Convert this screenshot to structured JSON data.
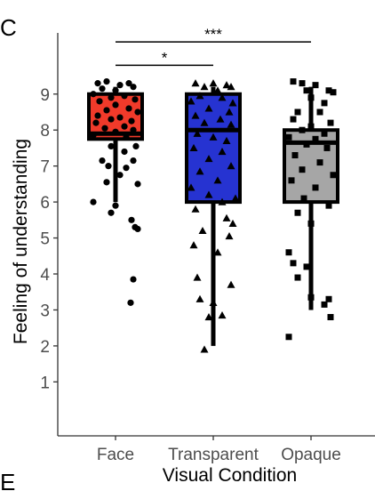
{
  "panel_label": "C",
  "bottom_panel_label": "E",
  "chart_data": {
    "type": "box",
    "title": "",
    "xlabel": "Visual Condition",
    "ylabel": "Feeling of understanding",
    "ylim": [
      -0.5,
      10.7
    ],
    "yticks": [
      1,
      2,
      3,
      4,
      5,
      6,
      7,
      8,
      9
    ],
    "grid": false,
    "legend": "none",
    "categories": [
      "Face",
      "Transparent",
      "Opaque"
    ],
    "boxes": [
      {
        "category": "Face",
        "q1": 7.75,
        "median": 7.9,
        "q3": 9.0,
        "whisker_low": 6.0,
        "whisker_high": 9.2,
        "color": "#f03a2a",
        "marker": "circle"
      },
      {
        "category": "Transparent",
        "q1": 6.0,
        "median": 8.0,
        "q3": 9.0,
        "whisker_low": 2.0,
        "whisker_high": 9.2,
        "color": "#2633d1",
        "marker": "triangle"
      },
      {
        "category": "Opaque",
        "q1": 6.0,
        "median": 7.65,
        "q3": 8.0,
        "whisker_low": 3.0,
        "whisker_high": 9.2,
        "color": "#a6a6a6",
        "marker": "square"
      }
    ],
    "points": {
      "Face": [
        [
          -0.2,
          9.3
        ],
        [
          -0.1,
          9.35
        ],
        [
          0.05,
          9.25
        ],
        [
          0.15,
          9.3
        ],
        [
          -0.15,
          9.15
        ],
        [
          0.2,
          9.2
        ],
        [
          0.0,
          9.1
        ],
        [
          -0.25,
          9.0
        ],
        [
          0.1,
          8.95
        ],
        [
          -0.05,
          8.9
        ],
        [
          0.22,
          8.85
        ],
        [
          -0.18,
          8.8
        ],
        [
          0.0,
          8.7
        ],
        [
          0.15,
          8.6
        ],
        [
          -0.1,
          8.55
        ],
        [
          0.25,
          8.5
        ],
        [
          -0.2,
          8.4
        ],
        [
          0.05,
          8.35
        ],
        [
          -0.05,
          8.3
        ],
        [
          0.18,
          8.25
        ],
        [
          -0.22,
          8.2
        ],
        [
          0.1,
          8.1
        ],
        [
          -0.12,
          8.05
        ],
        [
          0.2,
          8.0
        ],
        [
          0.0,
          7.95
        ],
        [
          -0.25,
          7.85
        ],
        [
          0.12,
          7.8
        ],
        [
          0.23,
          7.55
        ],
        [
          -0.05,
          7.55
        ],
        [
          0.1,
          7.4
        ],
        [
          -0.15,
          7.15
        ],
        [
          0.2,
          7.15
        ],
        [
          -0.08,
          7.0
        ],
        [
          0.12,
          6.95
        ],
        [
          0.05,
          6.75
        ],
        [
          -0.1,
          6.55
        ],
        [
          0.25,
          6.5
        ],
        [
          -0.25,
          6.0
        ],
        [
          0.0,
          5.9
        ],
        [
          -0.05,
          5.7
        ],
        [
          0.18,
          5.5
        ],
        [
          0.22,
          5.3
        ],
        [
          0.25,
          5.25
        ],
        [
          0.2,
          3.85
        ],
        [
          0.17,
          3.2
        ]
      ],
      "Transparent": [
        [
          -0.2,
          9.3
        ],
        [
          0.0,
          9.3
        ],
        [
          0.15,
          9.25
        ],
        [
          -0.1,
          9.2
        ],
        [
          0.2,
          9.2
        ],
        [
          0.05,
          9.1
        ],
        [
          -0.15,
          8.95
        ],
        [
          0.1,
          8.9
        ],
        [
          -0.25,
          8.8
        ],
        [
          0.22,
          8.75
        ],
        [
          -0.05,
          8.6
        ],
        [
          0.18,
          8.5
        ],
        [
          -0.2,
          8.4
        ],
        [
          0.08,
          8.3
        ],
        [
          -0.1,
          8.2
        ],
        [
          0.2,
          8.15
        ],
        [
          -0.18,
          7.9
        ],
        [
          0.0,
          7.8
        ],
        [
          0.15,
          7.7
        ],
        [
          -0.22,
          7.5
        ],
        [
          0.1,
          7.4
        ],
        [
          -0.05,
          7.2
        ],
        [
          0.2,
          7.0
        ],
        [
          -0.15,
          6.85
        ],
        [
          0.05,
          6.6
        ],
        [
          -0.25,
          6.4
        ],
        [
          0.25,
          6.1
        ],
        [
          -0.05,
          6.2
        ],
        [
          0.1,
          6.0
        ],
        [
          -0.2,
          5.8
        ],
        [
          0.15,
          5.55
        ],
        [
          0.22,
          5.4
        ],
        [
          -0.12,
          5.2
        ],
        [
          0.18,
          5.05
        ],
        [
          -0.22,
          4.8
        ],
        [
          0.05,
          4.6
        ],
        [
          -0.18,
          3.9
        ],
        [
          0.2,
          3.7
        ],
        [
          -0.15,
          3.3
        ],
        [
          0.0,
          3.2
        ],
        [
          -0.05,
          2.8
        ],
        [
          0.1,
          2.85
        ],
        [
          -0.1,
          1.9
        ]
      ],
      "Opaque": [
        [
          -0.2,
          9.35
        ],
        [
          -0.1,
          9.3
        ],
        [
          0.05,
          9.25
        ],
        [
          0.2,
          9.1
        ],
        [
          0.25,
          9.05
        ],
        [
          -0.05,
          9.1
        ],
        [
          0.0,
          8.9
        ],
        [
          0.15,
          8.75
        ],
        [
          -0.15,
          8.5
        ],
        [
          0.1,
          8.5
        ],
        [
          -0.2,
          8.3
        ],
        [
          0.22,
          8.2
        ],
        [
          0.0,
          8.1
        ],
        [
          -0.1,
          8.0
        ],
        [
          0.15,
          7.9
        ],
        [
          -0.25,
          7.8
        ],
        [
          0.05,
          7.75
        ],
        [
          -0.05,
          7.6
        ],
        [
          0.18,
          7.5
        ],
        [
          -0.18,
          7.3
        ],
        [
          0.1,
          7.1
        ],
        [
          -0.1,
          6.9
        ],
        [
          0.25,
          6.75
        ],
        [
          -0.22,
          6.6
        ],
        [
          0.05,
          6.4
        ],
        [
          -0.08,
          6.1
        ],
        [
          0.2,
          5.9
        ],
        [
          -0.15,
          5.7
        ],
        [
          0.0,
          5.4
        ],
        [
          -0.25,
          4.6
        ],
        [
          -0.2,
          4.3
        ],
        [
          -0.05,
          4.2
        ],
        [
          -0.15,
          3.9
        ],
        [
          0.0,
          3.35
        ],
        [
          0.2,
          3.3
        ],
        [
          0.15,
          3.15
        ],
        [
          0.22,
          2.8
        ],
        [
          -0.25,
          2.25
        ]
      ]
    },
    "significance": [
      {
        "from": "Face",
        "to": "Transparent",
        "label": "*",
        "y": 9.8
      },
      {
        "from": "Face",
        "to": "Opaque",
        "label": "***",
        "y": 10.45
      }
    ]
  }
}
